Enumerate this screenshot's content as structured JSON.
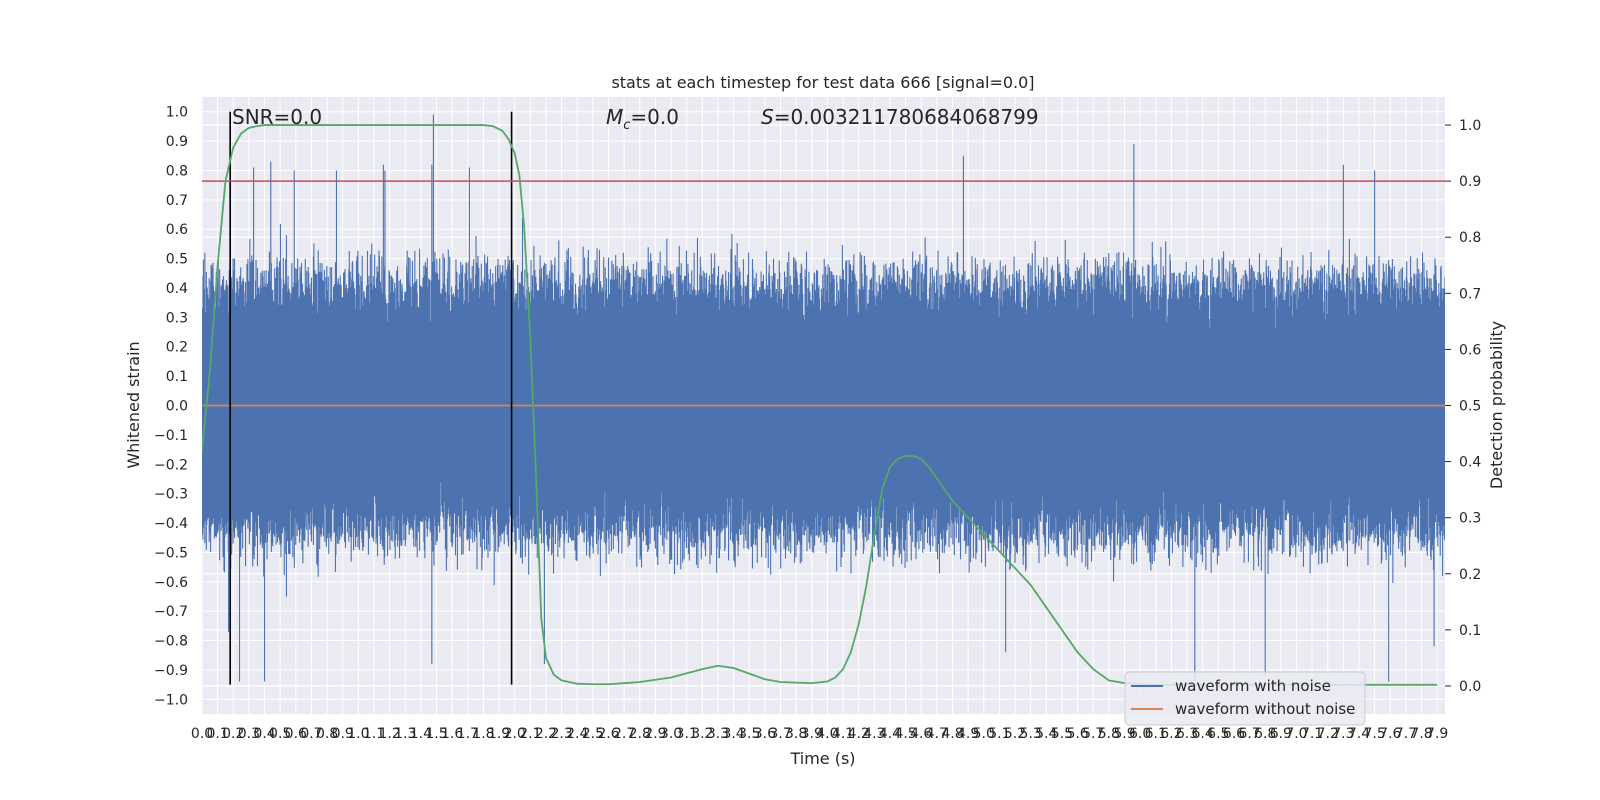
{
  "chart_data": {
    "type": "line",
    "title": "stats at each timestep for test data 666 [signal=0.0]",
    "xlabel": "Time (s)",
    "ylabel": "Whitened strain",
    "y2label": "Detection probability",
    "xlim": [
      0.0,
      7.95
    ],
    "ylim": [
      -1.05,
      1.05
    ],
    "y2lim": [
      -0.05,
      1.05
    ],
    "xticks": [
      "0.0",
      "0.1",
      "0.2",
      "0.3",
      "0.4",
      "0.5",
      "0.6",
      "0.7",
      "0.8",
      "0.9",
      "1.0",
      "1.1",
      "1.2",
      "1.3",
      "1.4",
      "1.5",
      "1.6",
      "1.7",
      "1.8",
      "1.9",
      "2.0",
      "2.1",
      "2.2",
      "2.3",
      "2.4",
      "2.5",
      "2.6",
      "2.7",
      "2.8",
      "2.9",
      "3.0",
      "3.1",
      "3.2",
      "3.3",
      "3.4",
      "3.5",
      "3.6",
      "3.7",
      "3.8",
      "3.9",
      "4.0",
      "4.1",
      "4.2",
      "4.3",
      "4.4",
      "4.5",
      "4.6",
      "4.7",
      "4.8",
      "4.9",
      "5.0",
      "5.1",
      "5.2",
      "5.3",
      "5.4",
      "5.5",
      "5.6",
      "5.7",
      "5.8",
      "5.9",
      "6.0",
      "6.1",
      "6.2",
      "6.3",
      "6.4",
      "6.5",
      "6.6",
      "6.7",
      "6.8",
      "6.9",
      "7.0",
      "7.1",
      "7.2",
      "7.3",
      "7.4",
      "7.5",
      "7.6",
      "7.7",
      "7.8",
      "7.9"
    ],
    "yticks": [
      "1.0",
      "0.9",
      "0.8",
      "0.7",
      "0.6",
      "0.5",
      "0.4",
      "0.3",
      "0.2",
      "0.1",
      "0.0",
      "−0.1",
      "−0.2",
      "−0.3",
      "−0.4",
      "−0.5",
      "−0.6",
      "−0.7",
      "−0.8",
      "−0.9",
      "−1.0"
    ],
    "y2ticks": [
      "1.0",
      "0.9",
      "0.8",
      "0.7",
      "0.6",
      "0.5",
      "0.4",
      "0.3",
      "0.2",
      "0.1",
      "0.0"
    ],
    "annotations": {
      "snr": "SNR=0.0",
      "mc_symbol": "M",
      "mc_sub": "c",
      "mc_value": "=0.0",
      "s_symbol": "S",
      "s_value": "=0.003211780684068799"
    },
    "threshold_y2": 0.9,
    "vlines_x": [
      0.18,
      1.98
    ],
    "vline_ylim": [
      -0.95,
      1.0
    ],
    "legend": [
      "waveform with noise",
      "waveform without noise"
    ],
    "legend_position": "lower-right",
    "grid": true,
    "noise_spikes": {
      "upper": [
        [
          0.54,
          0.58
        ],
        [
          0.18,
          0.82
        ],
        [
          0.33,
          0.81
        ],
        [
          0.44,
          0.83
        ],
        [
          0.59,
          0.8
        ],
        [
          0.86,
          0.8
        ],
        [
          1.16,
          0.82
        ],
        [
          1.17,
          0.8
        ],
        [
          1.47,
          0.82
        ],
        [
          1.48,
          0.99
        ],
        [
          1.71,
          0.81
        ],
        [
          2.05,
          0.64
        ],
        [
          4.87,
          0.85
        ],
        [
          5.96,
          0.89
        ],
        [
          7.3,
          0.82
        ],
        [
          7.5,
          0.8
        ]
      ],
      "lower": [
        [
          0.54,
          -0.65
        ],
        [
          0.17,
          -0.77
        ],
        [
          0.24,
          -0.94
        ],
        [
          0.4,
          -0.94
        ],
        [
          1.47,
          -0.88
        ],
        [
          2.19,
          -0.88
        ],
        [
          5.14,
          -0.84
        ],
        [
          6.35,
          -0.94
        ],
        [
          6.8,
          -0.92
        ],
        [
          7.59,
          -0.94
        ],
        [
          7.88,
          -0.82
        ]
      ]
    },
    "series": [
      {
        "name": "waveform with noise",
        "color": "#4c72b0",
        "style": "noise-band"
      },
      {
        "name": "waveform without noise",
        "color": "#dd8452",
        "x": [
          0.0,
          7.95
        ],
        "y": [
          0.0,
          0.0
        ]
      },
      {
        "color": "#55a868",
        "axis": "right",
        "x": [
          0.0,
          0.05,
          0.1,
          0.15,
          0.2,
          0.25,
          0.3,
          0.35,
          0.4,
          0.5,
          0.6,
          0.8,
          1.0,
          1.2,
          1.4,
          1.6,
          1.8,
          1.86,
          1.92,
          1.96,
          2.0,
          2.03,
          2.06,
          2.1,
          2.14,
          2.17,
          2.2,
          2.25,
          2.3,
          2.4,
          2.5,
          2.6,
          2.8,
          3.0,
          3.2,
          3.3,
          3.4,
          3.5,
          3.6,
          3.7,
          3.8,
          3.9,
          4.0,
          4.05,
          4.1,
          4.15,
          4.2,
          4.25,
          4.3,
          4.35,
          4.4,
          4.45,
          4.5,
          4.55,
          4.6,
          4.65,
          4.7,
          4.75,
          4.8,
          4.9,
          5.0,
          5.1,
          5.2,
          5.3,
          5.4,
          5.5,
          5.6,
          5.7,
          5.8,
          5.9,
          6.0,
          6.1,
          6.2,
          6.4,
          6.6,
          6.8,
          7.0,
          7.2,
          7.4,
          7.6,
          7.8,
          7.9
        ],
        "y": [
          0.42,
          0.56,
          0.75,
          0.9,
          0.96,
          0.985,
          0.995,
          0.998,
          1.0,
          1.0,
          1.0,
          1.0,
          1.0,
          1.0,
          1.0,
          1.0,
          1.0,
          0.998,
          0.99,
          0.975,
          0.95,
          0.91,
          0.82,
          0.62,
          0.35,
          0.12,
          0.05,
          0.02,
          0.01,
          0.004,
          0.003,
          0.003,
          0.007,
          0.015,
          0.03,
          0.036,
          0.032,
          0.022,
          0.012,
          0.007,
          0.006,
          0.005,
          0.008,
          0.015,
          0.03,
          0.06,
          0.11,
          0.18,
          0.27,
          0.35,
          0.39,
          0.405,
          0.41,
          0.41,
          0.405,
          0.39,
          0.37,
          0.35,
          0.33,
          0.3,
          0.27,
          0.24,
          0.21,
          0.18,
          0.14,
          0.1,
          0.06,
          0.03,
          0.01,
          0.005,
          0.003,
          0.002,
          0.002,
          0.002,
          0.002,
          0.002,
          0.002,
          0.002,
          0.002,
          0.002,
          0.002,
          0.002
        ]
      }
    ]
  }
}
